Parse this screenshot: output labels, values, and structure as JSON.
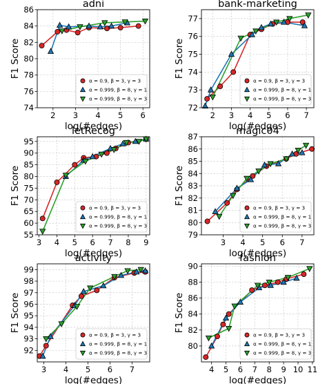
{
  "series_styles": [
    {
      "color": "#d62728",
      "marker": "circle"
    },
    {
      "color": "#1f77b4",
      "marker": "triangle-up"
    },
    {
      "color": "#2ca02c",
      "marker": "triangle-down"
    }
  ],
  "legend_labels": [
    "α = 0.9, β = 3, γ = 3",
    "α = 0.999, β = 8, γ = 1",
    "α = 0.999, β = 8, γ = 3"
  ],
  "chart_data": [
    {
      "type": "line",
      "title": "adni",
      "xlabel": "log(#edges)",
      "ylabel": "F1 Score",
      "xlim": [
        1.3,
        6.3
      ],
      "ylim": [
        74,
        86
      ],
      "xticks": [
        2,
        3,
        4,
        5,
        6
      ],
      "yticks": [
        74,
        76,
        78,
        80,
        82,
        84,
        86
      ],
      "grid": true,
      "legend": "bottom-right",
      "series": [
        {
          "name": "α = 0.9, β = 3, γ = 3",
          "x": [
            1.5,
            2.2,
            2.6,
            3.1,
            3.6,
            4.4,
            5.0,
            5.8
          ],
          "y": [
            81.6,
            83.3,
            83.5,
            83.2,
            83.8,
            83.7,
            83.8,
            84.0
          ]
        },
        {
          "name": "α = 0.999, β = 8, γ = 1",
          "x": [
            1.9,
            2.3,
            2.7,
            3.6,
            4.1,
            4.6,
            5.3
          ],
          "y": [
            80.9,
            84.1,
            83.9,
            84.0,
            83.9,
            84.0,
            84.4
          ]
        },
        {
          "name": "α = 0.999, β = 8, γ = 3",
          "x": [
            2.4,
            3.2,
            4.3,
            5.2,
            6.1
          ],
          "y": [
            83.4,
            83.9,
            84.4,
            84.5,
            84.6
          ]
        }
      ]
    },
    {
      "type": "line",
      "title": "bank-marketing",
      "xlabel": "log(#edges)",
      "ylabel": "F1 Score",
      "xlim": [
        1.4,
        7.4
      ],
      "ylim": [
        72,
        77.5
      ],
      "xticks": [
        2,
        3,
        4,
        5,
        6,
        7
      ],
      "yticks": [
        72,
        73,
        74,
        75,
        76,
        77
      ],
      "grid": true,
      "legend": "bottom-right",
      "series": [
        {
          "name": "α = 0.9, β = 3, γ = 3",
          "x": [
            1.7,
            2.4,
            3.1,
            4.0,
            4.6,
            5.2,
            6.0,
            6.8
          ],
          "y": [
            72.5,
            73.2,
            74.0,
            76.1,
            76.4,
            76.7,
            76.8,
            76.8
          ]
        },
        {
          "name": "α = 0.999, β = 8, γ = 1",
          "x": [
            1.6,
            1.9,
            3.0,
            4.1,
            4.6,
            5.1,
            5.8,
            6.9
          ],
          "y": [
            72.1,
            73.0,
            75.0,
            76.1,
            76.5,
            76.7,
            76.8,
            76.6
          ]
        },
        {
          "name": "α = 0.999, β = 8, γ = 3",
          "x": [
            2.0,
            3.5,
            4.3,
            5.4,
            6.1,
            7.1
          ],
          "y": [
            72.6,
            75.9,
            76.3,
            76.8,
            77.0,
            77.2
          ]
        }
      ]
    },
    {
      "type": "line",
      "title": "letRecog",
      "xlabel": "log(#edges)",
      "ylabel": "F1 Score",
      "xlim": [
        2.9,
        9.2
      ],
      "ylim": [
        55,
        97
      ],
      "xticks": [
        3,
        4,
        5,
        6,
        7,
        8,
        9
      ],
      "yticks": [
        55,
        60,
        65,
        70,
        75,
        80,
        85,
        90,
        95
      ],
      "grid": true,
      "legend": "bottom-right",
      "series": [
        {
          "name": "α = 0.9, β = 3, γ = 3",
          "x": [
            3.2,
            4.0,
            5.0,
            5.5,
            6.2,
            6.8,
            7.3,
            8.0,
            9.0
          ],
          "y": [
            62.0,
            77.5,
            85.0,
            88.0,
            88.5,
            90.0,
            92.0,
            94.5,
            96.0
          ]
        },
        {
          "name": "α = 0.999, β = 8, γ = 1",
          "x": [
            4.5,
            5.5,
            6.0,
            7.0,
            7.7,
            8.4,
            9.0
          ],
          "y": [
            80.0,
            87.0,
            88.5,
            92.0,
            94.0,
            95.0,
            96.0
          ]
        },
        {
          "name": "α = 0.999, β = 8, γ = 3",
          "x": [
            3.2,
            4.5,
            5.6,
            6.5,
            7.2,
            7.9,
            8.6,
            9.0
          ],
          "y": [
            56.5,
            80.5,
            86.5,
            89.5,
            91.5,
            94.5,
            95.0,
            96.0
          ]
        }
      ]
    },
    {
      "type": "line",
      "title": "magic04",
      "xlabel": "log(#edges)",
      "ylabel": "F1 Score",
      "xlim": [
        1.9,
        7.6
      ],
      "ylim": [
        79,
        87
      ],
      "xticks": [
        3,
        4,
        5,
        6,
        7
      ],
      "yticks": [
        79,
        80,
        81,
        82,
        83,
        84,
        85,
        86,
        87
      ],
      "grid": true,
      "legend": "bottom-right",
      "series": [
        {
          "name": "α = 0.9, β = 3, γ = 3",
          "x": [
            2.2,
            3.2,
            3.7,
            4.5,
            5.2,
            6.2,
            6.7,
            7.5
          ],
          "y": [
            80.1,
            81.6,
            82.7,
            83.8,
            84.6,
            85.2,
            85.6,
            86.0
          ]
        },
        {
          "name": "α = 0.999, β = 8, γ = 1",
          "x": [
            2.6,
            3.7,
            4.4,
            5.1,
            5.8,
            6.5,
            7.0
          ],
          "y": [
            80.9,
            82.8,
            83.5,
            84.7,
            84.8,
            85.6,
            85.7
          ]
        },
        {
          "name": "α = 0.999, β = 8, γ = 3",
          "x": [
            2.8,
            3.5,
            4.2,
            4.8,
            5.4,
            6.2,
            6.8,
            7.2
          ],
          "y": [
            80.5,
            82.2,
            83.6,
            84.2,
            84.8,
            85.2,
            85.9,
            86.3
          ]
        }
      ]
    },
    {
      "type": "line",
      "title": "activity",
      "xlabel": "log(#edges)",
      "ylabel": "F1 Score",
      "xlim": [
        2.7,
        7.8
      ],
      "ylim": [
        91,
        99.5
      ],
      "xticks": [
        3,
        4,
        5,
        6,
        7
      ],
      "yticks": [
        92,
        93,
        94,
        95,
        96,
        97,
        98,
        99
      ],
      "grid": true,
      "legend": "bottom-right",
      "series": [
        {
          "name": "α = 0.9, β = 3, γ = 3",
          "x": [
            2.8,
            3.1,
            4.3,
            4.7,
            5.4,
            6.2,
            7.1,
            7.6
          ],
          "y": [
            91.5,
            92.4,
            95.9,
            96.7,
            97.2,
            98.3,
            98.7,
            98.8
          ]
        },
        {
          "name": "α = 0.999, β = 8, γ = 1",
          "x": [
            2.95,
            3.3,
            4.4,
            4.8,
            5.7,
            6.5,
            7.2,
            7.6
          ],
          "y": [
            91.5,
            93.2,
            95.9,
            97.1,
            97.6,
            98.5,
            98.8,
            98.9
          ]
        },
        {
          "name": "α = 0.999, β = 8, γ = 3",
          "x": [
            3.1,
            3.8,
            4.5,
            5.1,
            6.2,
            6.8,
            7.4
          ],
          "y": [
            93.0,
            94.3,
            95.8,
            97.4,
            98.4,
            98.9,
            99.0
          ]
        }
      ]
    },
    {
      "type": "line",
      "title": "fashion",
      "xlabel": "log(#edges)",
      "ylabel": "F1 Score",
      "xlim": [
        3.3,
        11.1
      ],
      "ylim": [
        78,
        90.3
      ],
      "xticks": [
        4,
        5,
        6,
        7,
        8,
        9,
        10,
        11
      ],
      "yticks": [
        80,
        82,
        84,
        86,
        88,
        90
      ],
      "grid": true,
      "legend": "bottom-right",
      "series": [
        {
          "name": "α = 0.9, β = 3, γ = 3",
          "x": [
            3.6,
            4.4,
            4.8,
            5.2,
            6.8,
            7.7,
            8.6,
            9.2,
            10.4
          ],
          "y": [
            78.6,
            81.2,
            82.7,
            84.0,
            87.0,
            87.6,
            88.0,
            88.4,
            89.0
          ]
        },
        {
          "name": "α = 0.999, β = 8, γ = 1",
          "x": [
            4.0,
            5.0,
            6.0,
            7.3,
            8.1,
            9.0,
            9.9
          ],
          "y": [
            80.0,
            83.5,
            85.5,
            87.3,
            87.6,
            88.0,
            88.5
          ]
        },
        {
          "name": "α = 0.999, β = 8, γ = 3",
          "x": [
            3.8,
            5.2,
            5.6,
            7.2,
            8.0,
            9.3,
            10.8
          ],
          "y": [
            81.0,
            82.2,
            85.0,
            87.6,
            88.0,
            88.6,
            89.7
          ]
        }
      ]
    }
  ]
}
